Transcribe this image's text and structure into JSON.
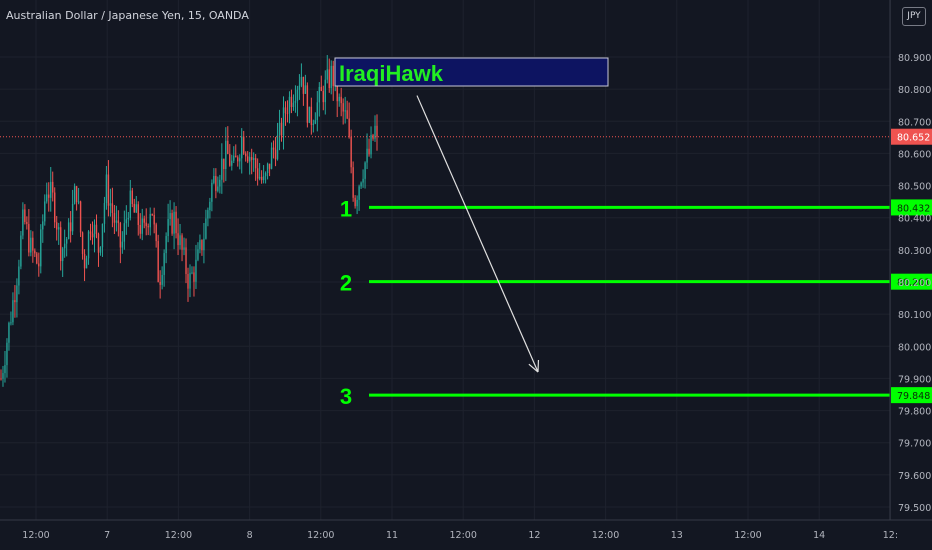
{
  "header": {
    "symbol_title": "Australian Dollar / Japanese Yen, 15, OANDA",
    "currency": "JPY"
  },
  "colors": {
    "background": "#131722",
    "up_candle": "#26a69a",
    "down_candle": "#ef5350",
    "level_line": "#00ff00",
    "last_price": "#ef5350",
    "watermark_fill": "#0d1461",
    "watermark_text": "#22ee22",
    "arrow": "#e0e0e0"
  },
  "chart_data": {
    "type": "candlestick",
    "symbol": "AUDJPY",
    "interval_minutes": 15,
    "ylim": [
      79.45,
      81.0
    ],
    "y_ticks": [
      "80.900",
      "80.800",
      "80.700",
      "80.600",
      "80.500",
      "80.400",
      "80.300",
      "80.200",
      "80.100",
      "80.000",
      "79.900",
      "79.800",
      "79.700",
      "79.600",
      "79.500"
    ],
    "x_ticks": [
      "12:00",
      "7",
      "12:00",
      "8",
      "12:00",
      "11",
      "12:00",
      "12",
      "12:00",
      "13",
      "12:00",
      "14",
      "12:"
    ],
    "last_price": "80.652",
    "levels": [
      {
        "label": "1",
        "value": 80.432,
        "price_label": "80.432"
      },
      {
        "label": "2",
        "value": 80.201,
        "price_label": "80.201"
      },
      {
        "label": "3",
        "value": 79.848,
        "price_label": "79.848"
      }
    ],
    "watermark": "IraqiHawk",
    "arrow": {
      "from_value": 80.78,
      "to_value": 79.92
    },
    "price_path": [
      79.9,
      80.05,
      80.2,
      80.4,
      80.3,
      80.25,
      80.5,
      80.45,
      80.3,
      80.35,
      80.5,
      80.25,
      80.4,
      80.3,
      80.5,
      80.4,
      80.3,
      80.45,
      80.4,
      80.35,
      80.45,
      80.2,
      80.35,
      80.4,
      80.3,
      80.2,
      80.25,
      80.35,
      80.5,
      80.55,
      80.6,
      80.55,
      80.65,
      80.6,
      80.55,
      80.5,
      80.6,
      80.65,
      80.75,
      80.8,
      80.85,
      80.7,
      80.75,
      80.8,
      80.85,
      80.75,
      80.7,
      80.45,
      80.55,
      80.6,
      80.7
    ]
  }
}
